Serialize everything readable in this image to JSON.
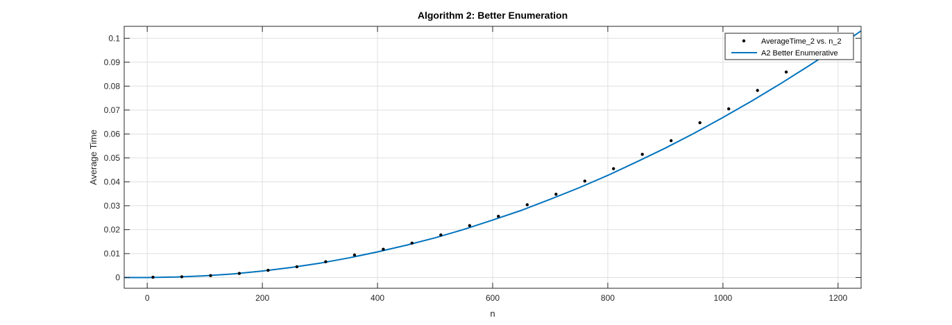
{
  "chart_data": {
    "type": "scatter",
    "title": "Algorithm 2: Better Enumeration",
    "xlabel": "n",
    "ylabel": "Average Time",
    "xlim": [
      -40,
      1240
    ],
    "ylim": [
      -0.0045,
      0.105
    ],
    "xticks": [
      0,
      200,
      400,
      600,
      800,
      1000,
      1200
    ],
    "xtick_labels": [
      "0",
      "200",
      "400",
      "600",
      "800",
      "1000",
      "1200"
    ],
    "yticks": [
      0,
      0.01,
      0.02,
      0.03,
      0.04,
      0.05,
      0.06,
      0.07,
      0.08,
      0.09,
      0.1
    ],
    "ytick_labels": [
      "0",
      "0.01",
      "0.02",
      "0.03",
      "0.04",
      "0.05",
      "0.06",
      "0.07",
      "0.08",
      "0.09",
      "0.1"
    ],
    "grid": true,
    "legend_position": "top-right",
    "series": [
      {
        "name": "AverageTime_2 vs. n_2",
        "style": "markers",
        "color": "#000000",
        "x": [
          10,
          60,
          110,
          160,
          210,
          260,
          310,
          360,
          410,
          460,
          510,
          560,
          610,
          660,
          710,
          760,
          810,
          860,
          910,
          960,
          1010,
          1060,
          1110
        ],
        "y": [
          0.0001,
          0.0003,
          0.0008,
          0.0017,
          0.003,
          0.0045,
          0.0066,
          0.0094,
          0.0118,
          0.0144,
          0.0178,
          0.0217,
          0.0256,
          0.0304,
          0.0348,
          0.0403,
          0.0455,
          0.0515,
          0.0572,
          0.0647,
          0.0705,
          0.0782,
          0.0859
        ]
      },
      {
        "name": "A2 Better Enumerative",
        "style": "line",
        "color": "#0072BD",
        "x": [
          -40,
          0,
          50,
          100,
          150,
          200,
          250,
          300,
          350,
          400,
          450,
          500,
          550,
          600,
          650,
          700,
          750,
          800,
          850,
          900,
          950,
          1000,
          1050,
          1100,
          1150,
          1200,
          1240
        ],
        "y": [
          0,
          0,
          0.0002,
          0.0007,
          0.0015,
          0.0027,
          0.0042,
          0.006,
          0.0082,
          0.0107,
          0.0135,
          0.0166,
          0.0201,
          0.024,
          0.0281,
          0.0327,
          0.0375,
          0.0427,
          0.0483,
          0.0541,
          0.0603,
          0.0669,
          0.0738,
          0.081,
          0.0886,
          0.0965,
          0.1031
        ]
      }
    ]
  }
}
